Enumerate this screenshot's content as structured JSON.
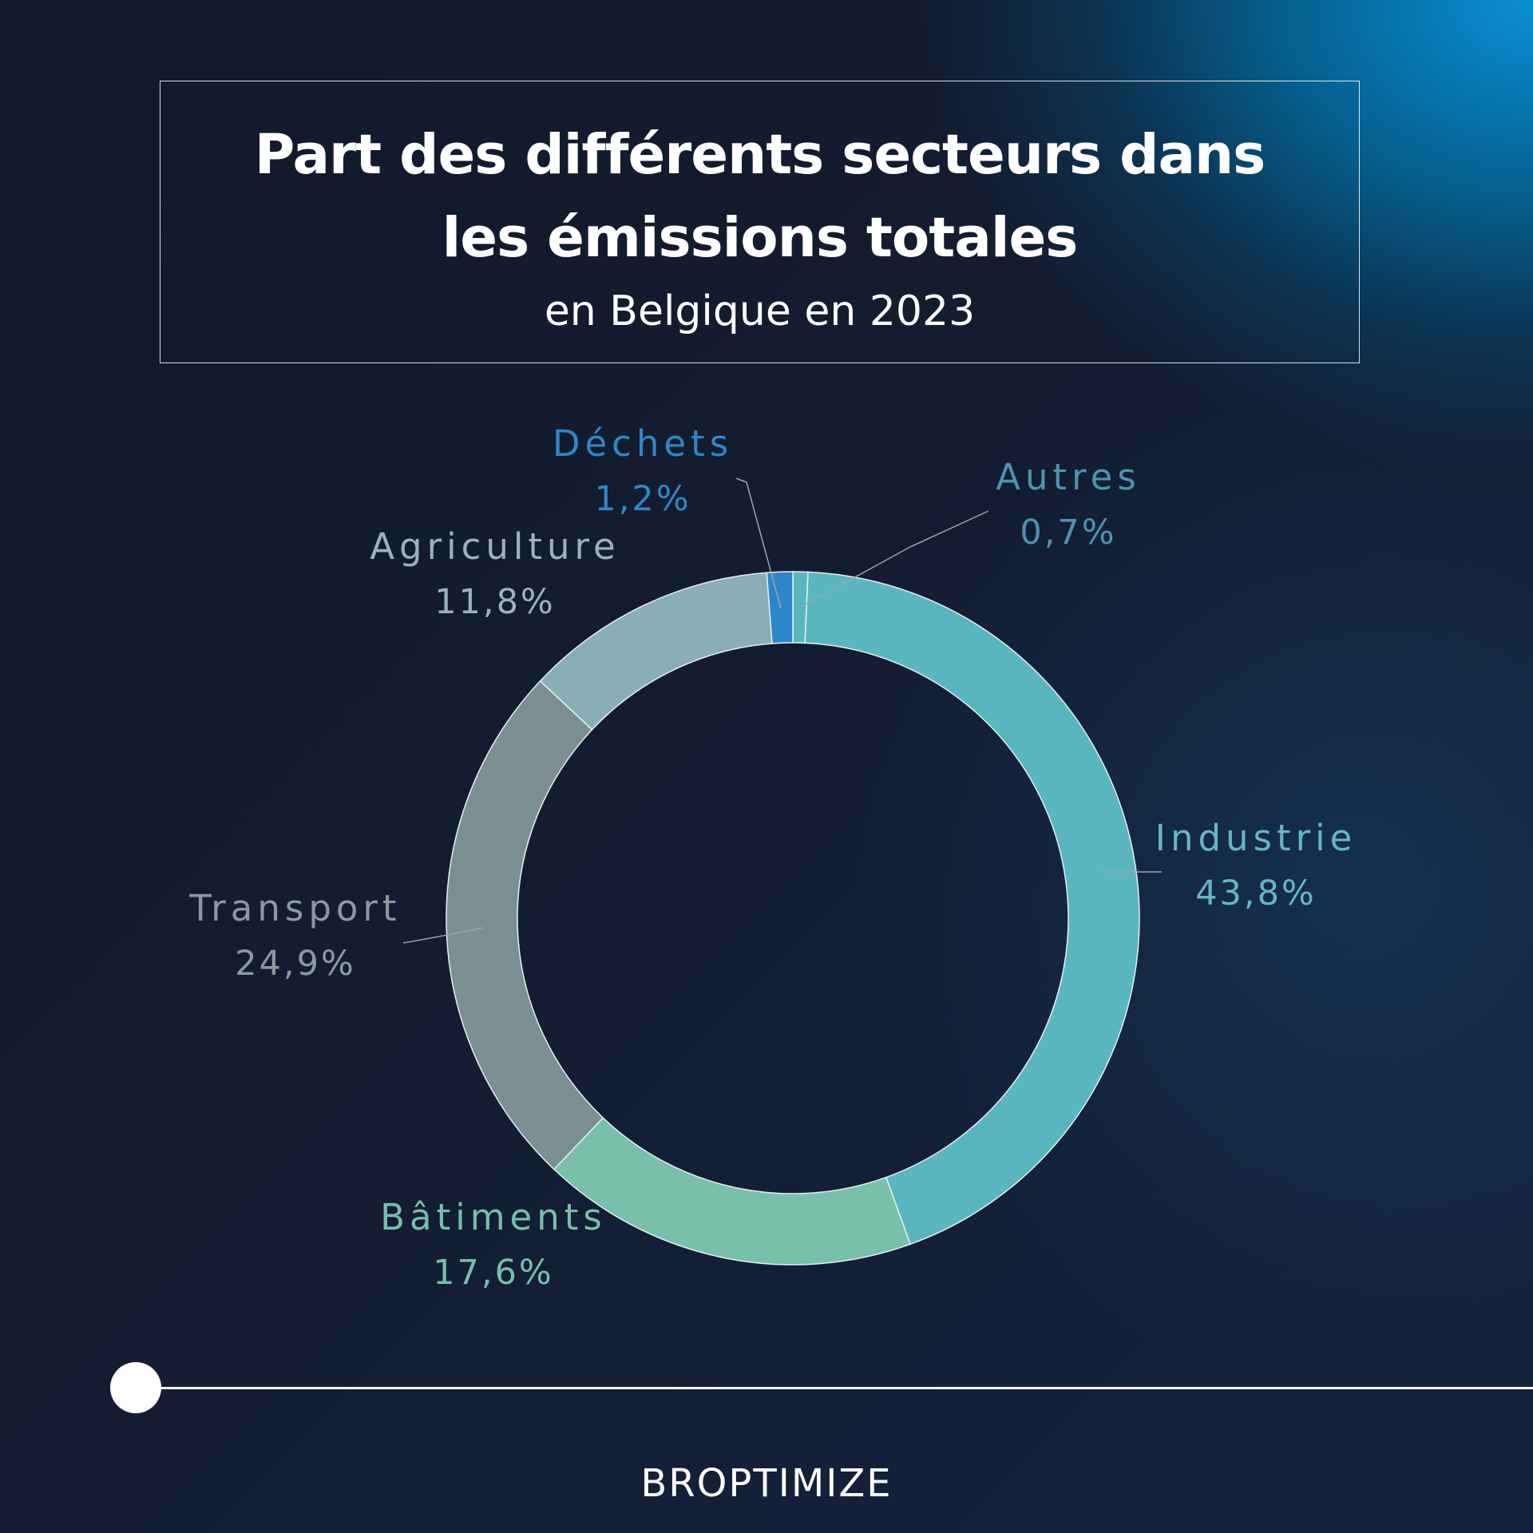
{
  "header": {
    "title": "Part des différents secteurs dans les émissions totales",
    "subtitle": "en Belgique en 2023"
  },
  "brand": {
    "logo_text": "BROPTIMIZE"
  },
  "chart_data": {
    "type": "pie",
    "variant": "donut",
    "title": "Part des différents secteurs dans les émissions totales",
    "subtitle": "en Belgique en 2023",
    "start_angle_deg": 0,
    "direction": "clockwise",
    "slices": [
      {
        "label": "Autres",
        "value": 0.7,
        "value_label": "0,7%",
        "color": "#59b6c0",
        "label_color": "#4e93b0"
      },
      {
        "label": "Industrie",
        "value": 43.8,
        "value_label": "43,8%",
        "color": "#59b6c0",
        "label_color": "#65b6c6"
      },
      {
        "label": "Bâtiments",
        "value": 17.6,
        "value_label": "17,6%",
        "color": "#78c0a9",
        "label_color": "#78bfa9"
      },
      {
        "label": "Transport",
        "value": 24.9,
        "value_label": "24,9%",
        "color": "#7b8f93",
        "label_color": "#8a9a9e"
      },
      {
        "label": "Agriculture",
        "value": 11.8,
        "value_label": "11,8%",
        "color": "#89aeb8",
        "label_color": "#9bb2ba"
      },
      {
        "label": "Déchets",
        "value": 1.2,
        "value_label": "1,2%",
        "color": "#2d86cc",
        "label_color": "#2f86cc"
      }
    ]
  }
}
